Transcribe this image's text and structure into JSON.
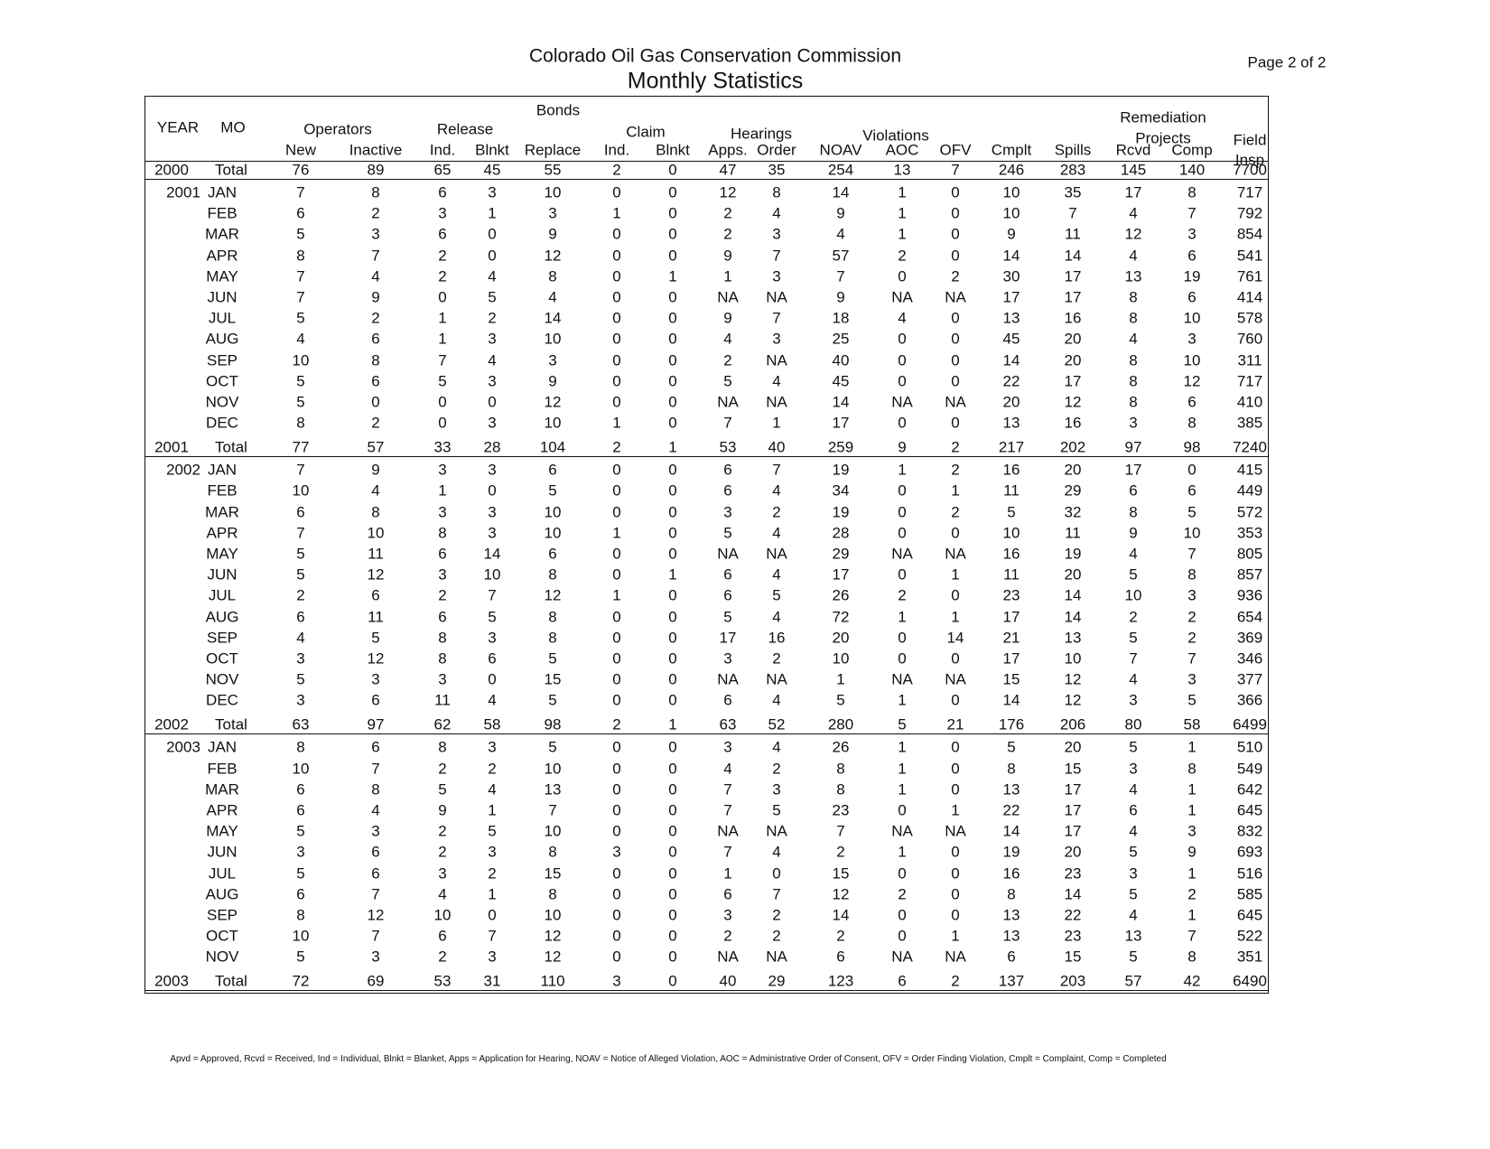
{
  "header": {
    "title": "Colorado Oil Gas Conservation Commission",
    "subtitle": "Monthly Statistics",
    "page": "Page 2 of 2"
  },
  "table": {
    "year_label": "YEAR",
    "mo_label": "MO",
    "top_label": "Bonds",
    "groups": [
      "Operators",
      "Release",
      "Claim",
      "Hearings",
      "Violations",
      "Remediation",
      "Projects",
      "Field"
    ],
    "columns": [
      "New",
      "Inactive",
      "Ind.",
      "Blnkt",
      "Replace",
      "Ind.",
      "Blnkt",
      "Apps.",
      "Order",
      "NOAV",
      "AOC",
      "OFV",
      "Cmplt",
      "Spills",
      "Rcvd",
      "Comp",
      "Insp"
    ],
    "rows": [
      {
        "year": 2000,
        "mo": "Total",
        "values": [
          76,
          89,
          65,
          45,
          55,
          2,
          0,
          47,
          35,
          254,
          13,
          7,
          246,
          283,
          145,
          140,
          7700
        ]
      },
      {
        "year": 2001,
        "mo": "JAN",
        "values": [
          7,
          8,
          6,
          3,
          10,
          0,
          0,
          12,
          8,
          14,
          1,
          0,
          10,
          35,
          17,
          8,
          717
        ]
      },
      {
        "mo": "FEB",
        "values": [
          6,
          2,
          3,
          1,
          3,
          1,
          0,
          2,
          4,
          9,
          1,
          0,
          10,
          7,
          4,
          7,
          792
        ]
      },
      {
        "mo": "MAR",
        "values": [
          5,
          3,
          6,
          0,
          9,
          0,
          0,
          2,
          3,
          4,
          1,
          0,
          9,
          11,
          12,
          3,
          854
        ]
      },
      {
        "mo": "APR",
        "values": [
          8,
          7,
          2,
          0,
          12,
          0,
          0,
          9,
          7,
          57,
          2,
          0,
          14,
          14,
          4,
          6,
          541
        ]
      },
      {
        "mo": "MAY",
        "values": [
          7,
          4,
          2,
          4,
          8,
          0,
          1,
          1,
          3,
          7,
          0,
          2,
          30,
          17,
          13,
          19,
          761
        ]
      },
      {
        "mo": "JUN",
        "values": [
          7,
          9,
          0,
          5,
          4,
          0,
          0,
          "NA",
          "NA",
          9,
          "NA",
          "NA",
          17,
          17,
          8,
          6,
          414
        ]
      },
      {
        "mo": "JUL",
        "values": [
          5,
          2,
          1,
          2,
          14,
          0,
          0,
          9,
          7,
          18,
          4,
          0,
          13,
          16,
          8,
          10,
          578
        ]
      },
      {
        "mo": "AUG",
        "values": [
          4,
          6,
          1,
          3,
          10,
          0,
          0,
          4,
          3,
          25,
          0,
          0,
          45,
          20,
          4,
          3,
          760
        ]
      },
      {
        "mo": "SEP",
        "values": [
          10,
          8,
          7,
          4,
          3,
          0,
          0,
          2,
          "NA",
          40,
          0,
          0,
          14,
          20,
          8,
          10,
          311
        ]
      },
      {
        "mo": "OCT",
        "values": [
          5,
          6,
          5,
          3,
          9,
          0,
          0,
          5,
          4,
          45,
          0,
          0,
          22,
          17,
          8,
          12,
          717
        ]
      },
      {
        "mo": "NOV",
        "values": [
          5,
          0,
          0,
          0,
          12,
          0,
          0,
          "NA",
          "NA",
          14,
          "NA",
          "NA",
          20,
          12,
          8,
          6,
          410
        ]
      },
      {
        "mo": "DEC",
        "values": [
          8,
          2,
          0,
          3,
          10,
          1,
          0,
          7,
          1,
          17,
          0,
          0,
          13,
          16,
          3,
          8,
          385
        ]
      },
      {
        "year": 2001,
        "mo": "Total",
        "values": [
          77,
          57,
          33,
          28,
          104,
          2,
          1,
          53,
          40,
          259,
          9,
          2,
          217,
          202,
          97,
          98,
          7240
        ]
      },
      {
        "year": 2002,
        "mo": "JAN",
        "values": [
          7,
          9,
          3,
          3,
          6,
          0,
          0,
          6,
          7,
          19,
          1,
          2,
          16,
          20,
          17,
          0,
          415
        ]
      },
      {
        "mo": "FEB",
        "values": [
          10,
          4,
          1,
          0,
          5,
          0,
          0,
          6,
          4,
          34,
          0,
          1,
          11,
          29,
          6,
          6,
          449
        ]
      },
      {
        "mo": "MAR",
        "values": [
          6,
          8,
          3,
          3,
          10,
          0,
          0,
          3,
          2,
          19,
          0,
          2,
          5,
          32,
          8,
          5,
          572
        ]
      },
      {
        "mo": "APR",
        "values": [
          7,
          10,
          8,
          3,
          10,
          1,
          0,
          5,
          4,
          28,
          0,
          0,
          10,
          11,
          9,
          10,
          353
        ]
      },
      {
        "mo": "MAY",
        "values": [
          5,
          11,
          6,
          14,
          6,
          0,
          0,
          "NA",
          "NA",
          29,
          "NA",
          "NA",
          16,
          19,
          4,
          7,
          805
        ]
      },
      {
        "mo": "JUN",
        "values": [
          5,
          12,
          3,
          10,
          8,
          0,
          1,
          6,
          4,
          17,
          0,
          1,
          11,
          20,
          5,
          8,
          857
        ]
      },
      {
        "mo": "JUL",
        "values": [
          2,
          6,
          2,
          7,
          12,
          1,
          0,
          6,
          5,
          26,
          2,
          0,
          23,
          14,
          10,
          3,
          936
        ]
      },
      {
        "mo": "AUG",
        "values": [
          6,
          11,
          6,
          5,
          8,
          0,
          0,
          5,
          4,
          72,
          1,
          1,
          17,
          14,
          2,
          2,
          654
        ]
      },
      {
        "mo": "SEP",
        "values": [
          4,
          5,
          8,
          3,
          8,
          0,
          0,
          17,
          16,
          20,
          0,
          14,
          21,
          13,
          5,
          2,
          369
        ]
      },
      {
        "mo": "OCT",
        "values": [
          3,
          12,
          8,
          6,
          5,
          0,
          0,
          3,
          2,
          10,
          0,
          0,
          17,
          10,
          7,
          7,
          346
        ]
      },
      {
        "mo": "NOV",
        "values": [
          5,
          3,
          3,
          0,
          15,
          0,
          0,
          "NA",
          "NA",
          1,
          "NA",
          "NA",
          15,
          12,
          4,
          3,
          377
        ]
      },
      {
        "mo": "DEC",
        "values": [
          3,
          6,
          11,
          4,
          5,
          0,
          0,
          6,
          4,
          5,
          1,
          0,
          14,
          12,
          3,
          5,
          366
        ]
      },
      {
        "year": 2002,
        "mo": "Total",
        "values": [
          63,
          97,
          62,
          58,
          98,
          2,
          1,
          63,
          52,
          280,
          5,
          21,
          176,
          206,
          80,
          58,
          6499
        ]
      },
      {
        "year": 2003,
        "mo": "JAN",
        "values": [
          8,
          6,
          8,
          3,
          5,
          0,
          0,
          3,
          4,
          26,
          1,
          0,
          5,
          20,
          5,
          1,
          510
        ]
      },
      {
        "mo": "FEB",
        "values": [
          10,
          7,
          2,
          2,
          10,
          0,
          0,
          4,
          2,
          8,
          1,
          0,
          8,
          15,
          3,
          8,
          549
        ]
      },
      {
        "mo": "MAR",
        "values": [
          6,
          8,
          5,
          4,
          13,
          0,
          0,
          7,
          3,
          8,
          1,
          0,
          13,
          17,
          4,
          1,
          642
        ]
      },
      {
        "mo": "APR",
        "values": [
          6,
          4,
          9,
          1,
          7,
          0,
          0,
          7,
          5,
          23,
          0,
          1,
          22,
          17,
          6,
          1,
          645
        ]
      },
      {
        "mo": "MAY",
        "values": [
          5,
          3,
          2,
          5,
          10,
          0,
          0,
          "NA",
          "NA",
          7,
          "NA",
          "NA",
          14,
          17,
          4,
          3,
          832
        ]
      },
      {
        "mo": "JUN",
        "values": [
          3,
          6,
          2,
          3,
          8,
          3,
          0,
          7,
          4,
          2,
          1,
          0,
          19,
          20,
          5,
          9,
          693
        ]
      },
      {
        "mo": "JUL",
        "values": [
          5,
          6,
          3,
          2,
          15,
          0,
          0,
          1,
          0,
          15,
          0,
          0,
          16,
          23,
          3,
          1,
          516
        ]
      },
      {
        "mo": "AUG",
        "values": [
          6,
          7,
          4,
          1,
          8,
          0,
          0,
          6,
          7,
          12,
          2,
          0,
          8,
          14,
          5,
          2,
          585
        ]
      },
      {
        "mo": "SEP",
        "values": [
          8,
          12,
          10,
          0,
          10,
          0,
          0,
          3,
          2,
          14,
          0,
          0,
          13,
          22,
          4,
          1,
          645
        ]
      },
      {
        "mo": "OCT",
        "values": [
          10,
          7,
          6,
          7,
          12,
          0,
          0,
          2,
          2,
          2,
          0,
          1,
          13,
          23,
          13,
          7,
          522
        ]
      },
      {
        "mo": "NOV",
        "values": [
          5,
          3,
          2,
          3,
          12,
          0,
          0,
          "NA",
          "NA",
          6,
          "NA",
          "NA",
          6,
          15,
          5,
          8,
          351
        ]
      },
      {
        "year": 2003,
        "mo": "Total",
        "values": [
          72,
          69,
          53,
          31,
          110,
          3,
          0,
          40,
          29,
          123,
          6,
          2,
          137,
          203,
          57,
          42,
          6490
        ]
      }
    ]
  },
  "footnote": "Apvd = Approved, Rcvd = Received, Ind = Individual, Blnkt = Blanket, Apps = Application for Hearing, NOAV = Notice of Alleged Violation, AOC = Administrative Order of Consent, OFV = Order Finding Violation, Cmplt = Complaint, Comp = Completed"
}
